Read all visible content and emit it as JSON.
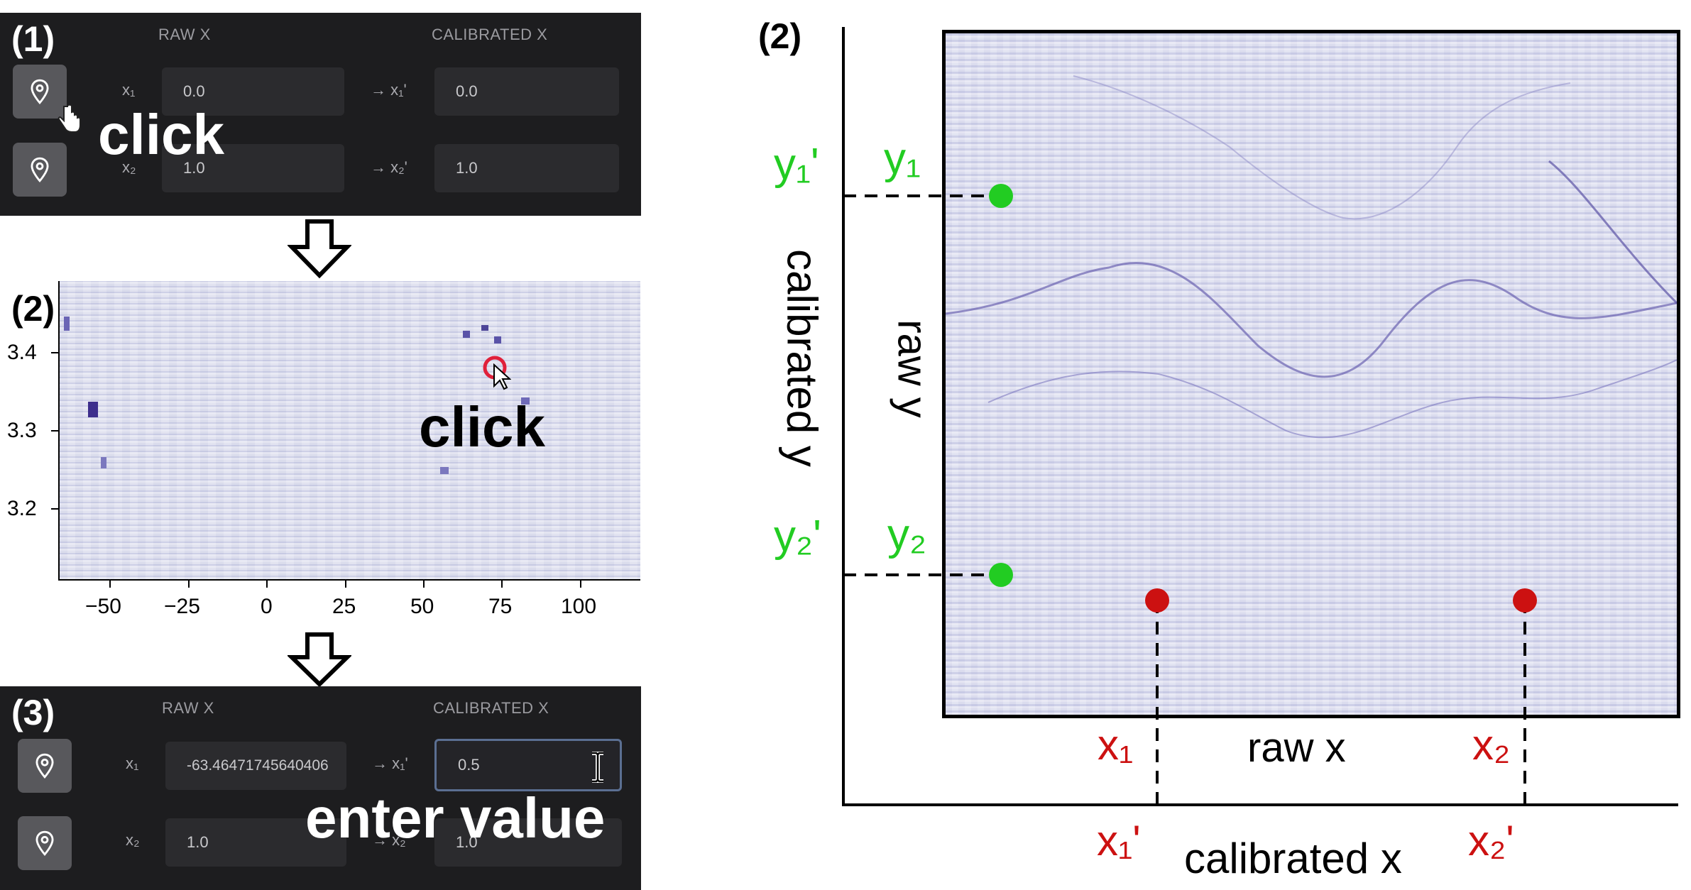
{
  "step_labels": {
    "s1": "(1)",
    "s2": "(2)",
    "s3": "(3)",
    "right": "(2)"
  },
  "panel1": {
    "raw_header": "RAW X",
    "cal_header": "CALIBRATED X",
    "x1_label": "x₁",
    "x2_label": "x₂",
    "x1_arrow": "→ x₁'",
    "x2_arrow": "→ x₂'",
    "x1_raw": "0.0",
    "x1_cal": "0.0",
    "x2_raw": "1.0",
    "x2_cal": "1.0",
    "callout": "click"
  },
  "panel2": {
    "y_ticks": [
      "3.4",
      "3.3",
      "3.2"
    ],
    "x_ticks": [
      "−50",
      "−25",
      "0",
      "25",
      "50",
      "75",
      "100"
    ],
    "callout": "click"
  },
  "panel3": {
    "raw_header": "RAW X",
    "cal_header": "CALIBRATED X",
    "x1_label": "x₁",
    "x2_label": "x₂",
    "x1_arrow": "→ x₁'",
    "x2_arrow": "→ x₂'",
    "x1_raw": "-63.46471745640406",
    "x1_cal": "0.5",
    "x2_raw": "1.0",
    "x2_cal": "1.0",
    "callout": "enter value"
  },
  "diagram": {
    "y1p": "y₁'",
    "y1": "y₁",
    "y2p": "y₂'",
    "y2": "y₂",
    "x1": "x₁",
    "x2": "x₂",
    "x1p": "x₁'",
    "x2p": "x₂'",
    "raw_y": "raw y",
    "raw_x": "raw x",
    "cal_y": "calibrated y",
    "cal_x": "calibrated x"
  },
  "colors": {
    "green": "#22cc22",
    "red": "#cc1111",
    "heat_bg": "#d9dbee"
  }
}
